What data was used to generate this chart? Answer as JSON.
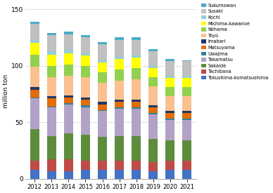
{
  "years": [
    2012,
    2013,
    2014,
    2015,
    2016,
    2017,
    2018,
    2019,
    2020,
    2021
  ],
  "ports": [
    "Tokushima-komatsushima",
    "Tachibana",
    "Sakaide",
    "Takamatsu",
    "Uwajima",
    "Matsuyama",
    "Imabari",
    "Toyo",
    "Niihama",
    "Mishima-kawanoe",
    "Kochi",
    "Susaki",
    "Sukumowan"
  ],
  "colors": [
    "#4472c4",
    "#c00000",
    "#70ad47",
    "#9dc3e6",
    "#00b0f0",
    "#ed7d31",
    "#1f3864",
    "#ffd966",
    "#a9d18e",
    "#fce4d6",
    "#bdd7ee",
    "#d0cece",
    "#9dc3e6"
  ],
  "colors2": [
    "#4472c4",
    "#c00000",
    "#70ad47",
    "#b4a7d6",
    "#00b0f0",
    "#ed7d31",
    "#1f3864",
    "#ffe699",
    "#c6e0b4",
    "#fce4d6",
    "#ddebf7",
    "#d6d6d6",
    "#a9c4e4"
  ],
  "data": {
    "Tokushima-komatsushima": [
      8,
      7,
      7,
      8,
      8,
      8,
      8,
      7,
      8,
      8
    ],
    "Tachibana": [
      8,
      10,
      10,
      8,
      8,
      8,
      8,
      8,
      8,
      8
    ],
    "Sakaide": [
      28,
      21,
      23,
      23,
      21,
      22,
      22,
      20,
      18,
      18
    ],
    "Takamatsu": [
      27,
      25,
      26,
      24,
      23,
      24,
      24,
      22,
      18,
      18
    ],
    "Uwajima": [
      1,
      1,
      1,
      2,
      1,
      1,
      1,
      1,
      1,
      1
    ],
    "Matsuyama": [
      7,
      7,
      5,
      5,
      5,
      5,
      5,
      5,
      5,
      5
    ],
    "Imabari": [
      2,
      2,
      2,
      2,
      2,
      2,
      2,
      2,
      2,
      2
    ],
    "Toyo": [
      18,
      17,
      17,
      18,
      17,
      17,
      18,
      17,
      13,
      13
    ],
    "Niihama": [
      11,
      10,
      10,
      10,
      9,
      10,
      10,
      8,
      8,
      8
    ],
    "Mishima-kawanoe": [
      10,
      10,
      10,
      9,
      9,
      9,
      9,
      8,
      8,
      8
    ],
    "Kochi": [
      3,
      3,
      3,
      2,
      2,
      2,
      2,
      2,
      2,
      2
    ],
    "Susaki": [
      14,
      14,
      14,
      14,
      14,
      15,
      14,
      13,
      13,
      13
    ],
    "Sukumowan": [
      2,
      2,
      2,
      2,
      2,
      2,
      2,
      2,
      2,
      1
    ]
  },
  "ylabel": "million ton",
  "ylim": [
    0,
    155
  ],
  "yticks": [
    0,
    50,
    100,
    150
  ],
  "background_color": "#ffffff",
  "grid_color": "#d9d9d9"
}
